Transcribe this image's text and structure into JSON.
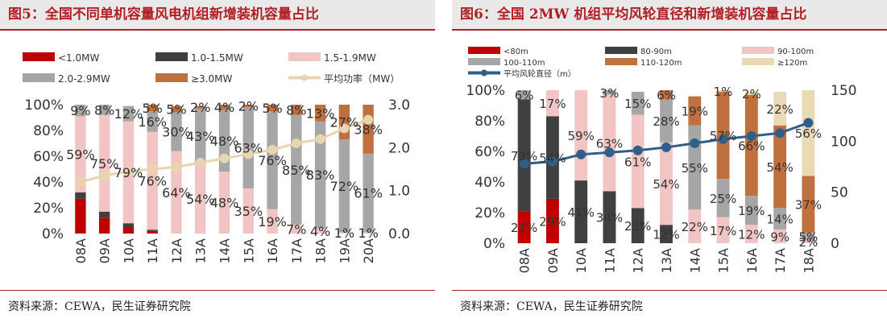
{
  "left_panel": {
    "title": "图5：全国不同单机容量风电机组新增装机容量占比",
    "source": "资料来源：CEWA，民生证券研究院"
  },
  "right_panel": {
    "title": "图6：全国 2MW 机组平均风轮直径和新增装机容量占比",
    "source": "资料来源：CEWA，民生证券研究院"
  },
  "chart_data": [
    {
      "type": "bar",
      "stacked": true,
      "categories": [
        "08A",
        "09A",
        "10A",
        "11A",
        "12A",
        "13A",
        "14A",
        "15A",
        "16A",
        "17A",
        "18A",
        "19A",
        "20A"
      ],
      "series": [
        {
          "name": "<1.0MW",
          "color": "#c00000",
          "values": [
            27,
            12,
            5,
            2,
            0,
            0,
            0,
            0,
            0,
            0,
            0,
            0,
            0
          ]
        },
        {
          "name": "1.0-1.5MW",
          "color": "#404040",
          "values": [
            5,
            5,
            3,
            1,
            0,
            0,
            0,
            0,
            0,
            0,
            0,
            0,
            0
          ]
        },
        {
          "name": "1.5-1.9MW",
          "color": "#f2c4c4",
          "values": [
            59,
            75,
            79,
            76,
            64,
            54,
            48,
            35,
            19,
            7,
            4,
            1,
            1
          ]
        },
        {
          "name": "2.0-2.9MW",
          "color": "#a6a6a6",
          "values": [
            9,
            8,
            12,
            16,
            30,
            43,
            48,
            63,
            76,
            85,
            83,
            72,
            61
          ]
        },
        {
          "name": "≥3.0MW",
          "color": "#c0703e",
          "values": [
            0,
            0,
            0,
            5,
            5,
            2,
            4,
            2,
            5,
            8,
            13,
            27,
            38
          ]
        }
      ],
      "labels": {
        "<1.0MW": [],
        "1.0-1.5MW": [],
        "1.5-1.9MW": [
          "59%",
          "75%",
          "79%",
          "76%",
          "64%",
          "54%",
          "48%",
          "35%",
          "19%",
          "7%",
          "4%",
          "1%",
          "1%"
        ],
        "2.0-2.9MW": [
          "9%",
          "8%",
          "12%",
          "16%",
          "30%",
          "43%",
          "48%",
          "63%",
          "76%",
          "85%",
          "83%",
          "72%",
          "61%"
        ],
        "≥3.0MW": [
          "",
          "",
          "",
          "5%",
          "5%",
          "2%",
          "4%",
          "2%",
          "5%",
          "8%",
          "13%",
          "27%",
          "38%"
        ]
      },
      "line_series": {
        "name": "平均功率（MW）",
        "color": "#e8d5b0",
        "values": [
          1.2,
          1.35,
          1.45,
          1.5,
          1.55,
          1.65,
          1.75,
          1.85,
          1.95,
          2.1,
          2.2,
          2.45,
          2.65
        ]
      },
      "y_left": {
        "min": 0,
        "max": 100,
        "ticks": [
          "0%",
          "20%",
          "40%",
          "60%",
          "80%",
          "100%"
        ]
      },
      "y_right": {
        "min": 0,
        "max": 3.0,
        "ticks": [
          "0.0",
          "1.0",
          "2.0",
          "3.0"
        ]
      },
      "legend_placement": "top"
    },
    {
      "type": "bar",
      "stacked": true,
      "categories": [
        "08A",
        "09A",
        "10A",
        "11A",
        "12A",
        "13A",
        "14A",
        "15A",
        "16A",
        "17A",
        "18A"
      ],
      "series": [
        {
          "name": "<80m",
          "color": "#c00000",
          "values": [
            21,
            29,
            0,
            0,
            0,
            0,
            0,
            0,
            0,
            0,
            0
          ]
        },
        {
          "name": "80-90m",
          "color": "#404040",
          "values": [
            73,
            54,
            41,
            34,
            23,
            12,
            0,
            0,
            0,
            0,
            0
          ]
        },
        {
          "name": "90-100m",
          "color": "#f2c4c4",
          "values": [
            0,
            17,
            59,
            63,
            61,
            54,
            22,
            17,
            12,
            9,
            2
          ]
        },
        {
          "name": "100-110m",
          "color": "#a6a6a6",
          "values": [
            6,
            0,
            0,
            3,
            15,
            28,
            55,
            25,
            19,
            14,
            5
          ]
        },
        {
          "name": "110-120m",
          "color": "#c0703e",
          "values": [
            0,
            0,
            0,
            0,
            0,
            6,
            19,
            57,
            66,
            54,
            37
          ]
        },
        {
          "name": "≥120m",
          "color": "#ead9b5",
          "values": [
            0,
            0,
            0,
            0,
            0,
            0,
            0,
            1,
            2,
            22,
            56
          ]
        }
      ],
      "labels": {
        "<80m": [
          "21%",
          "29%",
          "",
          "",
          "",
          "",
          "",
          "",
          "",
          "",
          ""
        ],
        "80-90m": [
          "73%",
          "54%",
          "41%",
          "34%",
          "23%",
          "12%",
          "",
          "",
          "",
          "",
          ""
        ],
        "90-100m": [
          "",
          "17%",
          "59%",
          "63%",
          "61%",
          "54%",
          "22%",
          "17%",
          "12%",
          "9%",
          "2%"
        ],
        "100-110m": [
          "6%",
          "",
          "",
          "3%",
          "15%",
          "28%",
          "55%",
          "25%",
          "19%",
          "14%",
          "5%"
        ],
        "110-120m": [
          "",
          "",
          "",
          "",
          "",
          "6%",
          "19%",
          "57%",
          "66%",
          "54%",
          "37%"
        ],
        "≥120m": [
          "",
          "",
          "",
          "",
          "",
          "",
          "",
          "1%",
          "2%",
          "22%",
          "56%"
        ]
      },
      "line_series": {
        "name": "平均风轮直径（m）",
        "color": "#2e5f8a",
        "values": [
          78,
          80,
          87,
          89,
          91,
          94,
          98,
          102,
          105,
          108,
          118
        ]
      },
      "y_left": {
        "min": 0,
        "max": 100,
        "ticks": [
          "0%",
          "20%",
          "40%",
          "60%",
          "80%",
          "100%"
        ]
      },
      "y_right": {
        "min": 0,
        "max": 150,
        "ticks": [
          "0",
          "50",
          "100",
          "150"
        ]
      },
      "legend_placement": "top"
    }
  ]
}
